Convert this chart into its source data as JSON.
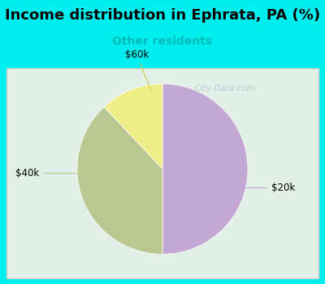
{
  "title": "Income distribution in Ephrata, PA (%)",
  "subtitle": "Other residents",
  "subtitle_color": "#00BBBB",
  "title_color": "#000000",
  "background_color": "#00EEEE",
  "chart_bg_gradient_top": "#E0F0E8",
  "chart_bg_gradient_bottom": "#D8EEE0",
  "slices": [
    {
      "label": "$20k",
      "value": 50,
      "color": "#C4A8D4"
    },
    {
      "label": "$40k",
      "value": 38,
      "color": "#B8C890"
    },
    {
      "label": "$60k",
      "value": 12,
      "color": "#EEEE88"
    }
  ],
  "label_color": "#000000",
  "label_fontsize": 8.5,
  "title_fontsize": 13,
  "subtitle_fontsize": 10,
  "watermark": "  City-Data.com",
  "watermark_color": "#AABBCC",
  "startangle": 90
}
